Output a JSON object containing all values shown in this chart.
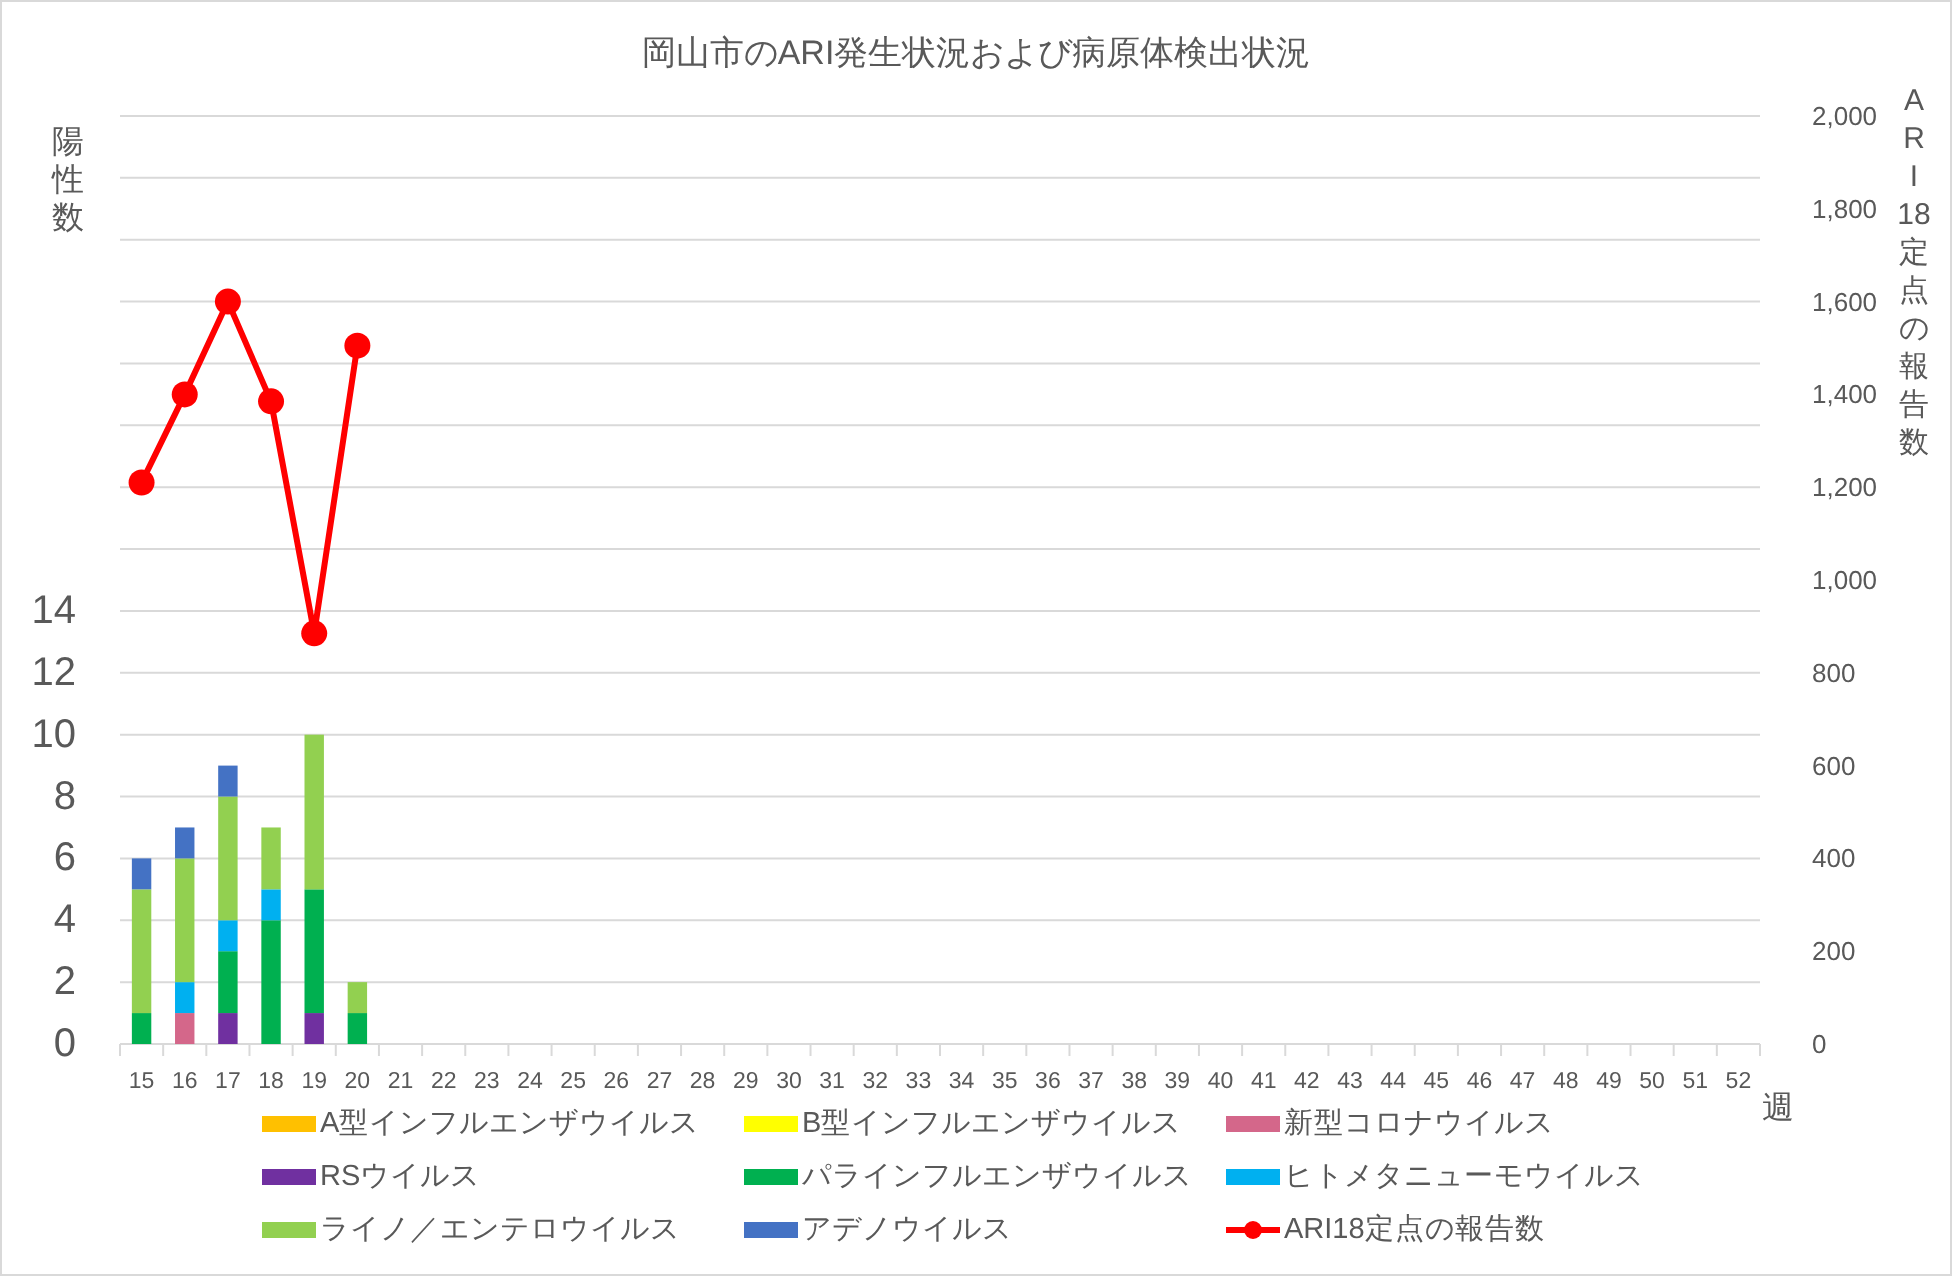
{
  "chart_data": {
    "type": "bar",
    "stacked": true,
    "title": "岡山市のARI発生状況および病原体検出状況",
    "xlabel": "週",
    "ylabel": "陽性数",
    "y2label": "ARI18定点の報告数",
    "categories": [
      "15",
      "16",
      "17",
      "18",
      "19",
      "20",
      "21",
      "22",
      "23",
      "24",
      "25",
      "26",
      "27",
      "28",
      "29",
      "30",
      "31",
      "32",
      "33",
      "34",
      "35",
      "36",
      "37",
      "38",
      "39",
      "40",
      "41",
      "42",
      "43",
      "44",
      "45",
      "46",
      "47",
      "48",
      "49",
      "50",
      "51",
      "52"
    ],
    "series": [
      {
        "name": "A型インフルエンザウイルス",
        "color": "#ffc000",
        "values": [
          0,
          0,
          0,
          0,
          0,
          0,
          null,
          null,
          null,
          null,
          null,
          null,
          null,
          null,
          null,
          null,
          null,
          null,
          null,
          null,
          null,
          null,
          null,
          null,
          null,
          null,
          null,
          null,
          null,
          null,
          null,
          null,
          null,
          null,
          null,
          null,
          null,
          null
        ]
      },
      {
        "name": "B型インフルエンザウイルス",
        "color": "#ffff00",
        "values": [
          0,
          0,
          0,
          0,
          0,
          0,
          null,
          null,
          null,
          null,
          null,
          null,
          null,
          null,
          null,
          null,
          null,
          null,
          null,
          null,
          null,
          null,
          null,
          null,
          null,
          null,
          null,
          null,
          null,
          null,
          null,
          null,
          null,
          null,
          null,
          null,
          null,
          null
        ]
      },
      {
        "name": "新型コロナウイルス",
        "color": "#d4678a",
        "values": [
          0,
          1,
          0,
          0,
          0,
          0,
          null,
          null,
          null,
          null,
          null,
          null,
          null,
          null,
          null,
          null,
          null,
          null,
          null,
          null,
          null,
          null,
          null,
          null,
          null,
          null,
          null,
          null,
          null,
          null,
          null,
          null,
          null,
          null,
          null,
          null,
          null,
          null
        ]
      },
      {
        "name": "RSウイルス",
        "color": "#7030a0",
        "values": [
          0,
          0,
          1,
          0,
          1,
          0,
          null,
          null,
          null,
          null,
          null,
          null,
          null,
          null,
          null,
          null,
          null,
          null,
          null,
          null,
          null,
          null,
          null,
          null,
          null,
          null,
          null,
          null,
          null,
          null,
          null,
          null,
          null,
          null,
          null,
          null,
          null,
          null
        ]
      },
      {
        "name": "パラインフルエンザウイルス",
        "color": "#00b050",
        "values": [
          1,
          0,
          2,
          4,
          4,
          1,
          null,
          null,
          null,
          null,
          null,
          null,
          null,
          null,
          null,
          null,
          null,
          null,
          null,
          null,
          null,
          null,
          null,
          null,
          null,
          null,
          null,
          null,
          null,
          null,
          null,
          null,
          null,
          null,
          null,
          null,
          null,
          null
        ]
      },
      {
        "name": "ヒトメタニューモウイルス",
        "color": "#00b0f0",
        "values": [
          0,
          1,
          1,
          1,
          0,
          0,
          null,
          null,
          null,
          null,
          null,
          null,
          null,
          null,
          null,
          null,
          null,
          null,
          null,
          null,
          null,
          null,
          null,
          null,
          null,
          null,
          null,
          null,
          null,
          null,
          null,
          null,
          null,
          null,
          null,
          null,
          null,
          null
        ]
      },
      {
        "name": "ライノ／エンテロウイルス",
        "color": "#92d050",
        "values": [
          4,
          4,
          4,
          2,
          5,
          1,
          null,
          null,
          null,
          null,
          null,
          null,
          null,
          null,
          null,
          null,
          null,
          null,
          null,
          null,
          null,
          null,
          null,
          null,
          null,
          null,
          null,
          null,
          null,
          null,
          null,
          null,
          null,
          null,
          null,
          null,
          null,
          null
        ]
      },
      {
        "name": "アデノウイルス",
        "color": "#4472c4",
        "values": [
          1,
          1,
          1,
          0,
          0,
          0,
          null,
          null,
          null,
          null,
          null,
          null,
          null,
          null,
          null,
          null,
          null,
          null,
          null,
          null,
          null,
          null,
          null,
          null,
          null,
          null,
          null,
          null,
          null,
          null,
          null,
          null,
          null,
          null,
          null,
          null,
          null,
          null
        ]
      },
      {
        "name": "ARI18定点の報告数",
        "type": "line",
        "axis": "y2",
        "marker": "circle",
        "color": "#ff0000",
        "values": [
          1210,
          1400,
          1600,
          1385,
          885,
          1505,
          null,
          null,
          null,
          null,
          null,
          null,
          null,
          null,
          null,
          null,
          null,
          null,
          null,
          null,
          null,
          null,
          null,
          null,
          null,
          null,
          null,
          null,
          null,
          null,
          null,
          null,
          null,
          null,
          null,
          null,
          null,
          null
        ]
      }
    ],
    "ylim": [
      0,
      30
    ],
    "yticks": [
      0,
      2,
      4,
      6,
      8,
      10,
      12,
      14,
      {
        "value": 16,
        "label": null
      },
      {
        "value": 18,
        "label": null
      },
      {
        "value": 20,
        "label": null
      },
      {
        "value": 22,
        "label": null
      },
      {
        "value": 24,
        "label": null
      },
      {
        "value": 26,
        "label": null
      },
      {
        "value": 28,
        "label": null
      },
      {
        "value": 30,
        "label": null
      }
    ],
    "y2lim": [
      0,
      2000
    ],
    "y2ticks": [
      0,
      200,
      400,
      600,
      800,
      {
        "value": 1000,
        "label": "1,000"
      },
      {
        "value": 1200,
        "label": "1,200"
      },
      {
        "value": 1400,
        "label": "1,400"
      },
      {
        "value": 1600,
        "label": "1,600"
      },
      {
        "value": 1800,
        "label": "1,800"
      },
      {
        "value": 2000,
        "label": "2,000"
      }
    ],
    "grid": "y",
    "legend": "bottom"
  }
}
